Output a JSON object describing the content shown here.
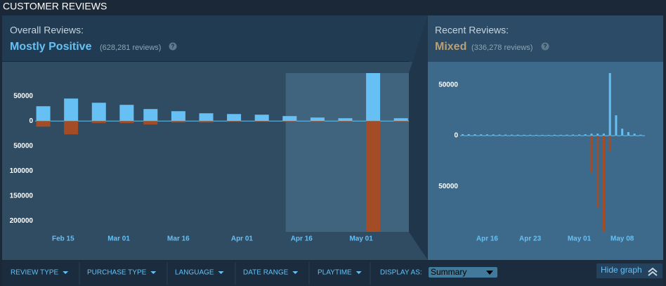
{
  "header": {
    "title": "CUSTOMER REVIEWS"
  },
  "summary": [
    {
      "label": "Overall Reviews:",
      "rating": "Mostly Positive",
      "count": "(628,281 reviews)",
      "help": "?"
    },
    {
      "label": "Recent Reviews:",
      "rating": "Mixed",
      "count": "(336,278 reviews)",
      "help": "?"
    }
  ],
  "chart_data": [
    {
      "type": "bar",
      "x": [
        41,
        48,
        55,
        62,
        68,
        75,
        82,
        89,
        96,
        103,
        110,
        117,
        124,
        131
      ],
      "series": [
        {
          "color": "#66c0f4",
          "values": [
            29600,
            45000,
            36600,
            32400,
            24000,
            19700,
            15500,
            14000,
            12700,
            9900,
            7000,
            5600,
            96000,
            5600
          ]
        },
        {
          "color": "#a34c25",
          "values": [
            -11300,
            -26800,
            -4200,
            -4200,
            -7000,
            -2800,
            -2800,
            -1400,
            -1400,
            -1400,
            -1400,
            -1400,
            -222000,
            -1400
          ]
        }
      ],
      "xlim": [
        31,
        133
      ],
      "xticks": [
        {
          "value": 46,
          "label": "Feb 15"
        },
        {
          "value": 60,
          "label": "Mar 01"
        },
        {
          "value": 75,
          "label": "Mar 16"
        },
        {
          "value": 91,
          "label": "Apr 01"
        },
        {
          "value": 106,
          "label": "Apr 16"
        },
        {
          "value": 121,
          "label": "May 01"
        }
      ],
      "ylim": [
        -222000,
        96000
      ],
      "yticks": [
        50000,
        0,
        {
          "value": -50000,
          "label": "50000"
        },
        {
          "value": -100000,
          "label": "100000"
        },
        {
          "value": -150000,
          "label": "150000"
        },
        {
          "value": -200000,
          "label": "200000"
        }
      ],
      "highlight": [
        102,
        133
      ]
    },
    {
      "type": "bar",
      "x": [
        102,
        103,
        104,
        105,
        106,
        107,
        108,
        109,
        110,
        111,
        112,
        113,
        114,
        115,
        116,
        117,
        118,
        119,
        120,
        121,
        122,
        123,
        124,
        125,
        126,
        127,
        128,
        129,
        130,
        131
      ],
      "series": [
        {
          "color": "#66c0f4",
          "values": [
            1500,
            1500,
            1400,
            1300,
            1300,
            1200,
            1100,
            1100,
            1000,
            1000,
            900,
            900,
            800,
            800,
            800,
            900,
            900,
            1000,
            1100,
            1200,
            1400,
            2000,
            2000,
            2000,
            61800,
            20100,
            6900,
            3500,
            2000,
            1000
          ]
        },
        {
          "color": "#a34c25",
          "values": [
            -300,
            -300,
            -300,
            -300,
            -300,
            -300,
            -300,
            -300,
            -300,
            -300,
            -300,
            -300,
            -300,
            -300,
            -300,
            -300,
            -300,
            -300,
            -300,
            -400,
            -500,
            -36800,
            -70800,
            -95000,
            -15300,
            -800,
            -500,
            -400,
            -300,
            -300
          ]
        }
      ],
      "xlim": [
        101.6,
        131.7
      ],
      "xticks": [
        {
          "value": 106,
          "label": "Apr 16"
        },
        {
          "value": 113,
          "label": "Apr 23"
        },
        {
          "value": 121,
          "label": "May 01"
        },
        {
          "value": 128,
          "label": "May 08"
        }
      ],
      "ylim": [
        -95000,
        62500
      ],
      "yticks": [
        50000,
        0,
        {
          "value": -50000,
          "label": "50000"
        }
      ]
    }
  ],
  "filters": [
    "REVIEW TYPE",
    "PURCHASE TYPE",
    "LANGUAGE",
    "DATE RANGE",
    "PLAYTIME"
  ],
  "display_as": {
    "label": "DISPLAY AS:",
    "value": "Summary"
  },
  "hide_graph": "Hide graph"
}
